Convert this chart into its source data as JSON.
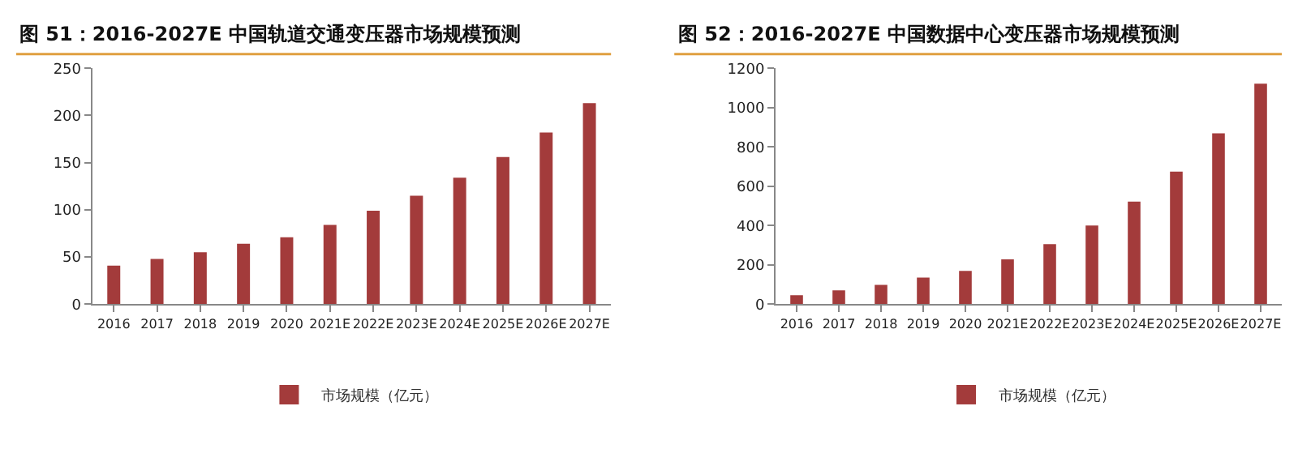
{
  "chart_data": [
    {
      "type": "bar",
      "title": "图 51：2016-2027E 中国轨道交通变压器市场规模预测",
      "categories": [
        "2016",
        "2017",
        "2018",
        "2019",
        "2020",
        "2021E",
        "2022E",
        "2023E",
        "2024E",
        "2025E",
        "2026E",
        "2027E"
      ],
      "series": [
        {
          "name": "市场规模（亿元）",
          "color": "#a33b3b",
          "values": [
            41,
            48,
            55,
            64,
            71,
            84,
            99,
            115,
            134,
            156,
            182,
            213
          ]
        }
      ],
      "ylim": [
        0,
        250
      ],
      "yticks": [
        0,
        50,
        100,
        150,
        200,
        250
      ],
      "legend": "bottom"
    },
    {
      "type": "bar",
      "title": "图 52：2016-2027E 中国数据中心变压器市场规模预测",
      "categories": [
        "2016",
        "2017",
        "2018",
        "2019",
        "2020",
        "2021E",
        "2022E",
        "2023E",
        "2024E",
        "2025E",
        "2026E",
        "2027E"
      ],
      "series": [
        {
          "name": "市场规模（亿元）",
          "color": "#a33b3b",
          "values": [
            46,
            71,
            99,
            136,
            170,
            228,
            306,
            400,
            522,
            674,
            869,
            1122
          ]
        }
      ],
      "ylim": [
        0,
        1200
      ],
      "yticks": [
        0,
        200,
        400,
        600,
        800,
        1000,
        1200
      ],
      "legend": "bottom"
    }
  ]
}
